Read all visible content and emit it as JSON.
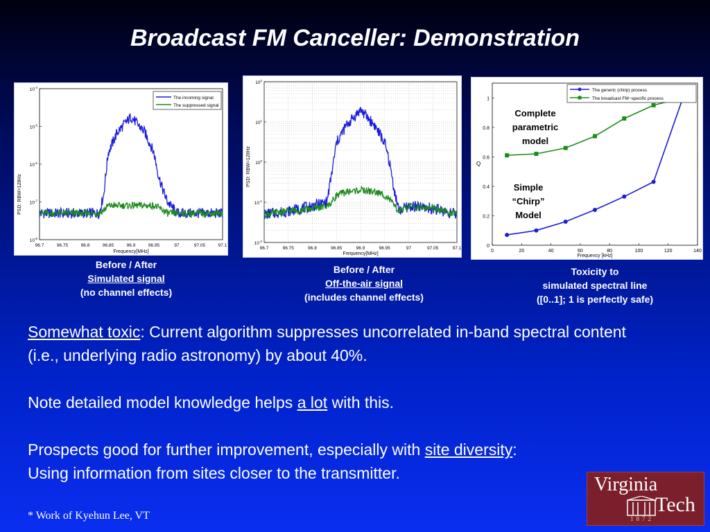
{
  "title": "Broadcast FM Canceller: Demonstration",
  "colors": {
    "blue_series": "#1a1adc",
    "green_series": "#1b8c1b"
  },
  "charts": {
    "c1": {
      "ylabel": "PSD: RBW=128Hz",
      "xlabel": "Frequency[MHz]",
      "xticks": [
        "96.7",
        "96.75",
        "96.8",
        "96.85",
        "96.9",
        "96.95",
        "97",
        "97.05",
        "97.1"
      ],
      "ytick_exp": [
        "-4",
        "-5",
        "-6",
        "-7",
        "-8"
      ],
      "legend": [
        "The incoming signal",
        "The suppressed signal"
      ]
    },
    "c2": {
      "ylabel": "PSD: RBW=128Hz",
      "xlabel": "Frequency[MHz]",
      "xticks": [
        "96.7",
        "96.75",
        "96.8",
        "96.85",
        "96.9",
        "96.95",
        "97",
        "97.05",
        "97.1"
      ],
      "ytick_exp": [
        "2",
        "1",
        "0",
        "-1",
        "-2"
      ]
    },
    "c3": {
      "xlabel": "Frequency [kHz]",
      "ylabel": "Q",
      "xticks": [
        "0",
        "20",
        "40",
        "60",
        "80",
        "100",
        "120",
        "140"
      ],
      "yticks": [
        "0",
        "0.2",
        "0.4",
        "0.6",
        "0.8",
        "1"
      ],
      "legend": [
        "The generic (chirp) process",
        "The broadcast FM−specific process"
      ],
      "annot_complete": [
        "Complete",
        "parametric",
        "model"
      ],
      "annot_simple": [
        "Simple",
        "“Chirp”",
        "Model"
      ]
    }
  },
  "chart_data": [
    {
      "type": "line",
      "xlabel": "Frequency[MHz]",
      "ylabel": "PSD: RBW=128Hz",
      "yscale": "log",
      "xlim": [
        96.7,
        97.1
      ],
      "ylim": [
        1e-08,
        0.0001
      ],
      "series": [
        {
          "name": "The incoming signal",
          "x": [
            96.7,
            96.75,
            96.8,
            96.83,
            96.84,
            96.85,
            96.87,
            96.9,
            96.93,
            96.95,
            96.96,
            96.97,
            96.98,
            97.0,
            97.05,
            97.1
          ],
          "y": [
            5e-08,
            5e-08,
            5e-08,
            5e-08,
            1.5e-07,
            2e-06,
            7e-06,
            1.8e-05,
            7e-06,
            2e-06,
            5e-07,
            2e-07,
            1e-07,
            5e-08,
            5e-08,
            5e-08
          ]
        },
        {
          "name": "The suppressed signal",
          "x": [
            96.7,
            96.75,
            96.8,
            96.83,
            96.84,
            96.85,
            96.87,
            96.9,
            96.93,
            96.95,
            96.96,
            96.97,
            96.98,
            97.0,
            97.05,
            97.1
          ],
          "y": [
            5e-08,
            5e-08,
            5e-08,
            5e-08,
            6e-08,
            8e-08,
            8e-08,
            8e-08,
            8e-08,
            8e-08,
            7e-08,
            6e-08,
            5e-08,
            5e-08,
            5e-08,
            5e-08
          ]
        }
      ]
    },
    {
      "type": "line",
      "xlabel": "Frequency[MHz]",
      "ylabel": "PSD: RBW=128Hz",
      "yscale": "log",
      "xlim": [
        96.7,
        97.1
      ],
      "ylim": [
        0.01,
        100
      ],
      "series": [
        {
          "x": [
            96.7,
            96.75,
            96.8,
            96.83,
            96.84,
            96.85,
            96.87,
            96.9,
            96.93,
            96.95,
            96.96,
            96.97,
            96.98,
            97.0,
            97.05,
            97.1
          ],
          "y": [
            0.05,
            0.06,
            0.08,
            0.1,
            0.5,
            3,
            8,
            20,
            8,
            3,
            1,
            0.2,
            0.06,
            0.08,
            0.07,
            0.05
          ]
        },
        {
          "x": [
            96.7,
            96.75,
            96.8,
            96.83,
            96.84,
            96.85,
            96.87,
            96.9,
            96.93,
            96.95,
            96.96,
            96.97,
            96.98,
            97.0,
            97.05,
            97.1
          ],
          "y": [
            0.05,
            0.06,
            0.07,
            0.08,
            0.1,
            0.15,
            0.18,
            0.2,
            0.18,
            0.15,
            0.12,
            0.08,
            0.06,
            0.08,
            0.07,
            0.05
          ]
        }
      ]
    },
    {
      "type": "line",
      "xlabel": "Frequency [kHz]",
      "ylabel": "Q",
      "xlim": [
        0,
        140
      ],
      "ylim": [
        0,
        1.1
      ],
      "series": [
        {
          "name": "The generic (chirp) process",
          "x": [
            10,
            30,
            50,
            70,
            90,
            110,
            130
          ],
          "y": [
            0.07,
            0.1,
            0.16,
            0.24,
            0.33,
            0.43,
            1.0
          ]
        },
        {
          "name": "The broadcast FM−specific process",
          "x": [
            10,
            30,
            50,
            70,
            90,
            110,
            130
          ],
          "y": [
            0.61,
            0.62,
            0.66,
            0.74,
            0.86,
            0.95,
            1.0
          ]
        }
      ]
    }
  ],
  "captions": {
    "c1": {
      "line1": "Before / After",
      "line2": "Simulated signal",
      "line3": "(no channel effects)"
    },
    "c2": {
      "line1": "Before / After",
      "line2": "Off-the-air signal",
      "line3": "(includes channel effects)"
    },
    "c3": {
      "line1": "Toxicity to",
      "line2": "simulated spectral line",
      "line3": "([0..1]; 1 is perfectly safe)"
    }
  },
  "body": {
    "p1_label": "Somewhat toxic",
    "p1_text": ":  Current algorithm suppresses uncorrelated in-band spectral content (i.e., underlying radio astronomy) by about 40%.",
    "p2_a": "Note detailed model knowledge helps ",
    "p2_link": "a lot",
    "p2_b": " with this.",
    "p3_a": "Prospects good for further improvement, especially with ",
    "p3_link": "site diversity",
    "p3_b": ":",
    "p3_c": "Using information from sites closer to the transmitter."
  },
  "footnote": "* Work of Kyehun Lee, VT",
  "logo": {
    "line1": "Virginia",
    "line2": "Tech",
    "year": "1872"
  }
}
